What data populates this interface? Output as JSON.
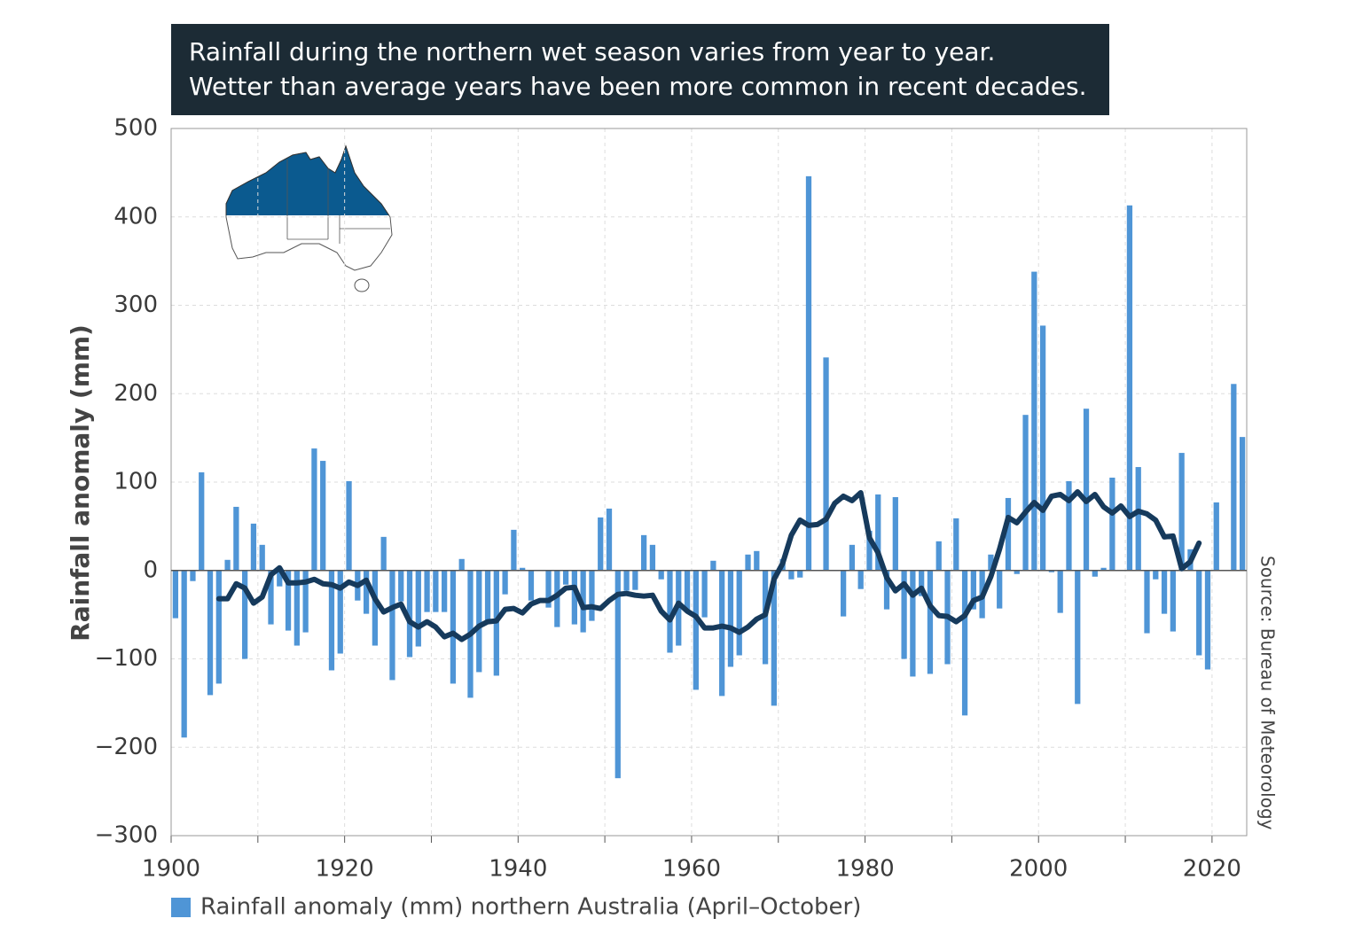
{
  "chart_data": {
    "type": "bar",
    "title": [
      "Rainfall during the northern wet season varies from year to year.",
      "Wetter than average years have been more common in recent decades."
    ],
    "y_label": "Rainfall anomaly (mm)",
    "source": "Source: Bureau of Meteorology",
    "xlim": [
      1900,
      2024
    ],
    "xticks": [
      1900,
      1920,
      1940,
      1960,
      1980,
      2000,
      2020
    ],
    "x_minor_ticks": [
      1910,
      1930,
      1950,
      1970,
      1990,
      2010
    ],
    "ylim": [
      -300,
      500
    ],
    "yticks": [
      {
        "value": -300,
        "label": "−300"
      },
      {
        "value": -200,
        "label": "−200"
      },
      {
        "value": -100,
        "label": "−100"
      },
      0,
      100,
      200,
      300,
      400,
      500
    ],
    "grid": true,
    "x": [
      1900,
      1901,
      1902,
      1903,
      1904,
      1905,
      1906,
      1907,
      1908,
      1909,
      1910,
      1911,
      1912,
      1913,
      1914,
      1915,
      1916,
      1917,
      1918,
      1919,
      1920,
      1921,
      1922,
      1923,
      1924,
      1925,
      1926,
      1927,
      1928,
      1929,
      1930,
      1931,
      1932,
      1933,
      1934,
      1935,
      1936,
      1937,
      1938,
      1939,
      1940,
      1941,
      1942,
      1943,
      1944,
      1945,
      1946,
      1947,
      1948,
      1949,
      1950,
      1951,
      1952,
      1953,
      1954,
      1955,
      1956,
      1957,
      1958,
      1959,
      1960,
      1961,
      1962,
      1963,
      1964,
      1965,
      1966,
      1967,
      1968,
      1969,
      1970,
      1971,
      1972,
      1973,
      1974,
      1975,
      1976,
      1977,
      1978,
      1979,
      1980,
      1981,
      1982,
      1983,
      1984,
      1985,
      1986,
      1987,
      1988,
      1989,
      1990,
      1991,
      1992,
      1993,
      1994,
      1995,
      1996,
      1997,
      1998,
      1999,
      2000,
      2001,
      2002,
      2003,
      2004,
      2005,
      2006,
      2007,
      2008,
      2009,
      2010,
      2011,
      2012,
      2013,
      2014,
      2015,
      2016,
      2017,
      2018,
      2019,
      2020,
      2021,
      2022,
      2023
    ],
    "series": [
      {
        "name": "Rainfall anomaly (mm) northern Australia (April–October)",
        "color": "#4f95d6",
        "values": [
          -54,
          -189,
          -12,
          111,
          -141,
          -128,
          12,
          72,
          -100,
          53,
          29,
          -61,
          -18,
          -68,
          -85,
          -70,
          138,
          124,
          -113,
          -94,
          101,
          -34,
          -49,
          -85,
          38,
          -124,
          -35,
          -98,
          -86,
          -47,
          -47,
          -47,
          -128,
          13,
          -144,
          -115,
          -58,
          -119,
          -27,
          46,
          3,
          -34,
          0,
          -42,
          -64,
          -16,
          -61,
          -70,
          -57,
          60,
          70,
          -235,
          -23,
          -22,
          40,
          29,
          -10,
          -93,
          -85,
          -46,
          -135,
          -53,
          11,
          -142,
          -109,
          -96,
          18,
          22,
          -106,
          -153,
          13,
          -10,
          -8,
          446,
          0,
          241,
          0,
          -52,
          29,
          -21,
          45,
          86,
          -44,
          83,
          -100,
          -120,
          -29,
          -117,
          33,
          -106,
          59,
          -164,
          -44,
          -54,
          18,
          -43,
          82,
          -4,
          176,
          338,
          277,
          -2,
          -48,
          101,
          -151,
          183,
          -7,
          3,
          105,
          0,
          413,
          117,
          -71,
          -10,
          -49,
          -69,
          133,
          24,
          -96,
          -112,
          77,
          0,
          211,
          151
        ]
      }
    ],
    "line": {
      "type": "line",
      "color": "#163a5c",
      "values": [
        null,
        null,
        null,
        null,
        null,
        -32,
        -32,
        -15,
        -20,
        -37,
        -30,
        -5,
        3,
        -14,
        -14,
        -13,
        -10,
        -15,
        -16,
        -20,
        -13,
        -17,
        -11,
        -32,
        -47,
        -42,
        -38,
        -58,
        -64,
        -58,
        -64,
        -75,
        -71,
        -78,
        -72,
        -63,
        -58,
        -57,
        -44,
        -43,
        -48,
        -38,
        -34,
        -34,
        -28,
        -20,
        -19,
        -42,
        -41,
        -43,
        -34,
        -27,
        -26,
        -28,
        -29,
        -28,
        -46,
        -56,
        -37,
        -46,
        -52,
        -65,
        -65,
        -63,
        -65,
        -70,
        -64,
        -55,
        -50,
        -10,
        8,
        40,
        57,
        51,
        52,
        58,
        76,
        84,
        79,
        88,
        37,
        20,
        -8,
        -23,
        -15,
        -28,
        -20,
        -40,
        -51,
        -52,
        -58,
        -51,
        -34,
        -30,
        -7,
        24,
        60,
        54,
        66,
        77,
        68,
        84,
        86,
        79,
        89,
        78,
        86,
        72,
        65,
        73,
        61,
        67,
        64,
        57,
        38,
        39,
        2,
        10,
        31,
        null,
        null,
        null,
        null,
        null
      ]
    }
  }
}
